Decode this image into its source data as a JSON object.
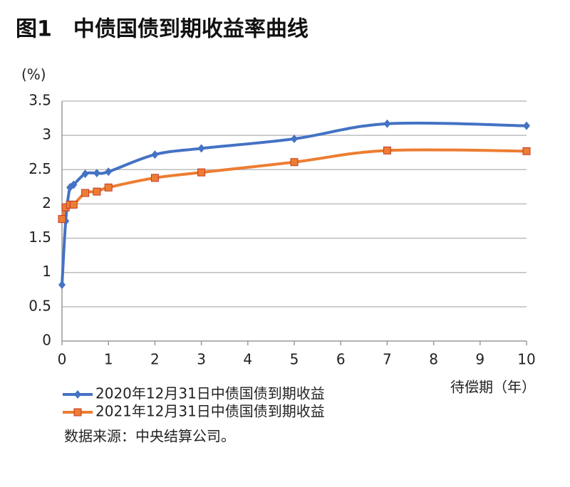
{
  "chart_data": {
    "type": "line",
    "title": "图1　中债国债到期收益率曲线",
    "y_label": "(%)",
    "x_label": "待偿期（年）",
    "source": "数据来源：中央结算公司。",
    "x": [
      0,
      0.08,
      0.17,
      0.25,
      0.5,
      0.75,
      1,
      2,
      3,
      5,
      7,
      10
    ],
    "series": [
      {
        "name": "2020年12月31日中债国债到期收益",
        "color": "#4472c4",
        "marker": "diamond",
        "values": [
          0.82,
          1.75,
          2.24,
          2.28,
          2.44,
          2.45,
          2.47,
          2.72,
          2.81,
          2.95,
          3.17,
          3.14
        ]
      },
      {
        "name": "2021年12月31日中债国债到期收益",
        "color": "#ed7d31",
        "marker": "square",
        "values": [
          1.78,
          1.95,
          1.99,
          1.99,
          2.16,
          2.18,
          2.24,
          2.38,
          2.46,
          2.61,
          2.78,
          2.77
        ]
      }
    ],
    "xlim": [
      0,
      10
    ],
    "xticks": [
      0,
      1,
      2,
      3,
      4,
      5,
      6,
      7,
      8,
      9,
      10
    ],
    "ylim": [
      0,
      3.5
    ],
    "yticks": [
      0,
      0.5,
      1,
      1.5,
      2,
      2.5,
      3,
      3.5
    ],
    "grid": true
  }
}
